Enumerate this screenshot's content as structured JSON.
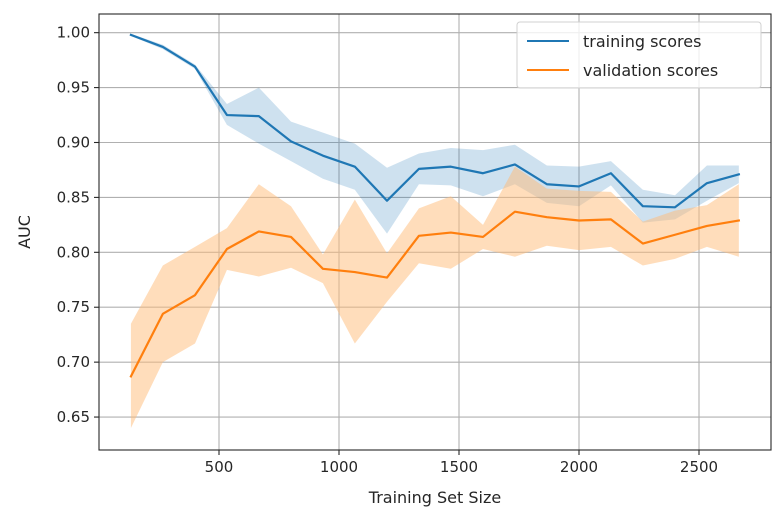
{
  "chart_data": {
    "type": "line",
    "title": "",
    "xlabel": "Training Set Size",
    "ylabel": "AUC",
    "xlim": [
      0,
      2800
    ],
    "ylim": [
      0.62,
      1.017
    ],
    "xticks": [
      500,
      1000,
      1500,
      2000,
      2500
    ],
    "yticks": [
      0.65,
      0.7,
      0.75,
      0.8,
      0.85,
      0.9,
      0.95,
      1.0
    ],
    "xtick_labels": [
      "500",
      "1000",
      "1500",
      "2000",
      "2500"
    ],
    "ytick_labels": [
      "0.65",
      "0.70",
      "0.75",
      "0.80",
      "0.85",
      "0.90",
      "0.95",
      "1.00"
    ],
    "grid": true,
    "legend_position": "top-right",
    "x": [
      133,
      266,
      400,
      533,
      666,
      800,
      933,
      1066,
      1200,
      1333,
      1466,
      1600,
      1733,
      1866,
      2000,
      2133,
      2266,
      2400,
      2533,
      2666
    ],
    "series": [
      {
        "name": "training scores",
        "color": "#1f77b4",
        "band_color": "#1f77b4",
        "values": [
          0.998,
          0.987,
          0.969,
          0.925,
          0.924,
          0.901,
          0.888,
          0.878,
          0.847,
          0.876,
          0.878,
          0.872,
          0.88,
          0.862,
          0.86,
          0.872,
          0.842,
          0.841,
          0.863,
          0.871
        ],
        "upper": [
          0.999,
          0.989,
          0.971,
          0.935,
          0.95,
          0.919,
          0.909,
          0.899,
          0.877,
          0.89,
          0.895,
          0.893,
          0.898,
          0.879,
          0.878,
          0.883,
          0.857,
          0.852,
          0.879,
          0.879
        ],
        "lower": [
          0.997,
          0.985,
          0.967,
          0.916,
          0.899,
          0.883,
          0.867,
          0.857,
          0.817,
          0.862,
          0.861,
          0.851,
          0.862,
          0.845,
          0.842,
          0.861,
          0.827,
          0.83,
          0.847,
          0.863
        ]
      },
      {
        "name": "validation scores",
        "color": "#ff7f0e",
        "band_color": "#ffbb78",
        "values": [
          0.687,
          0.744,
          0.761,
          0.803,
          0.819,
          0.814,
          0.785,
          0.782,
          0.777,
          0.815,
          0.818,
          0.814,
          0.837,
          0.832,
          0.829,
          0.83,
          0.808,
          0.816,
          0.824,
          0.829
        ],
        "upper": [
          0.735,
          0.788,
          0.805,
          0.822,
          0.862,
          0.842,
          0.798,
          0.848,
          0.799,
          0.84,
          0.851,
          0.825,
          0.878,
          0.858,
          0.856,
          0.855,
          0.828,
          0.838,
          0.843,
          0.862
        ],
        "lower": [
          0.64,
          0.7,
          0.717,
          0.784,
          0.778,
          0.786,
          0.772,
          0.717,
          0.755,
          0.79,
          0.785,
          0.803,
          0.796,
          0.806,
          0.802,
          0.805,
          0.788,
          0.794,
          0.805,
          0.796
        ]
      }
    ]
  }
}
